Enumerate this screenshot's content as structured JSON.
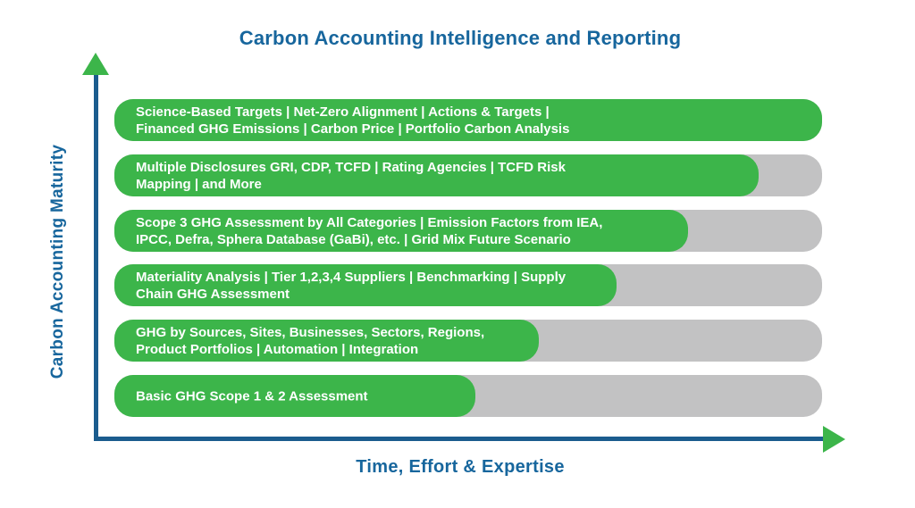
{
  "title": "Carbon Accounting Intelligence and Reporting",
  "y_axis_label": "Carbon Accounting Maturity",
  "x_axis_label": "Time, Effort & Expertise",
  "colors": {
    "bar_green": "#3cb54a",
    "track_gray": "#c2c2c3",
    "text_blue": "#17669d",
    "axis_blue": "#1b5c8e",
    "bar_text": "#ffffff"
  },
  "bars": [
    {
      "label": "Science-Based Targets | Net-Zero Alignment | Actions & Targets |\nFinanced GHG Emissions | Carbon Price | Portfolio Carbon Analysis",
      "fill_pct": 100
    },
    {
      "label": "Multiple Disclosures GRI, CDP, TCFD | Rating Agencies | TCFD Risk\nMapping | and More",
      "fill_pct": 91
    },
    {
      "label": "Scope 3 GHG Assessment by All Categories | Emission Factors from IEA,\nIPCC, Defra, Sphera Database (GaBi), etc. | Grid Mix Future Scenario",
      "fill_pct": 81
    },
    {
      "label": "Materiality Analysis | Tier 1,2,3,4 Suppliers | Benchmarking | Supply\nChain GHG Assessment",
      "fill_pct": 71
    },
    {
      "label": "GHG by Sources, Sites, Businesses, Sectors, Regions,\nProduct Portfolios | Automation | Integration",
      "fill_pct": 60
    },
    {
      "label": "Basic GHG Scope 1 & 2 Assessment",
      "fill_pct": 51
    }
  ],
  "chart_data": {
    "type": "bar",
    "orientation": "horizontal",
    "title": "Carbon Accounting Intelligence and Reporting",
    "xlabel": "Time, Effort & Expertise",
    "ylabel": "Carbon Accounting Maturity",
    "order": "top-to-bottom as displayed; maturity increases upward",
    "categories": [
      "Science-Based Targets | Net-Zero Alignment | Actions & Targets | Financed GHG Emissions | Carbon Price | Portfolio Carbon Analysis",
      "Multiple Disclosures GRI, CDP, TCFD | Rating Agencies | TCFD Risk Mapping | and More",
      "Scope 3 GHG Assessment by All Categories | Emission Factors from IEA, IPCC, Defra, Sphera Database (GaBi), etc. | Grid Mix Future Scenario",
      "Materiality Analysis | Tier 1,2,3,4 Suppliers | Benchmarking | Supply Chain GHG Assessment",
      "GHG by Sources, Sites, Businesses, Sectors, Regions, Product Portfolios | Automation | Integration",
      "Basic GHG Scope 1 & 2 Assessment"
    ],
    "values": [
      100,
      91,
      81,
      71,
      60,
      51
    ],
    "value_units": "percent of full bar track (estimated from pixel lengths)",
    "xlim": [
      0,
      100
    ],
    "grid": false,
    "legend": false,
    "bar_color": "#3cb54a",
    "track_color": "#c2c2c3"
  }
}
